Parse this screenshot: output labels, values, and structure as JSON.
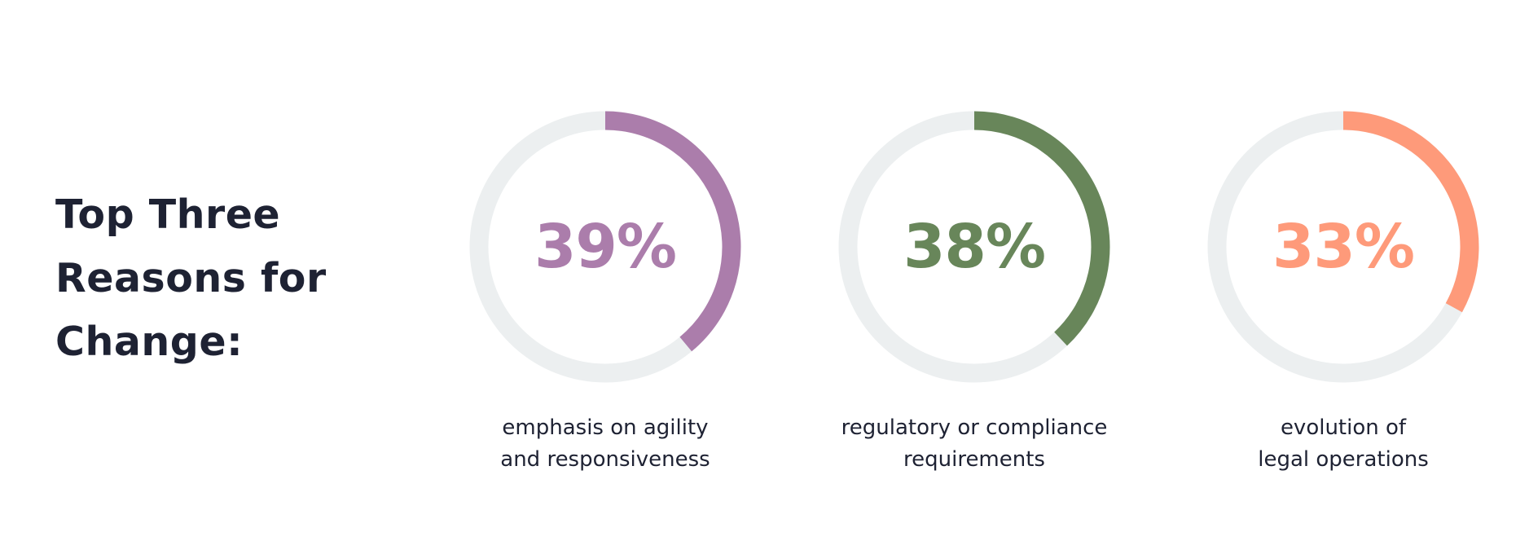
{
  "heading": {
    "lines": [
      "Top Three",
      "Reasons for",
      "Change:"
    ]
  },
  "colors": {
    "track": "#eceff0",
    "text": "#1e2233"
  },
  "chart_data": {
    "type": "pie",
    "style": "donut",
    "title": "Top Three Reasons for Change:",
    "items": [
      {
        "value": 39,
        "label": "39%",
        "color": "#ab7dab",
        "caption": [
          "emphasis on agility",
          "and responsiveness"
        ]
      },
      {
        "value": 38,
        "label": "38%",
        "color": "#68865a",
        "caption": [
          "regulatory or compliance",
          "requirements"
        ]
      },
      {
        "value": 33,
        "label": "33%",
        "color": "#fe9a7a",
        "caption": [
          "evolution of",
          "legal operations"
        ]
      }
    ]
  }
}
